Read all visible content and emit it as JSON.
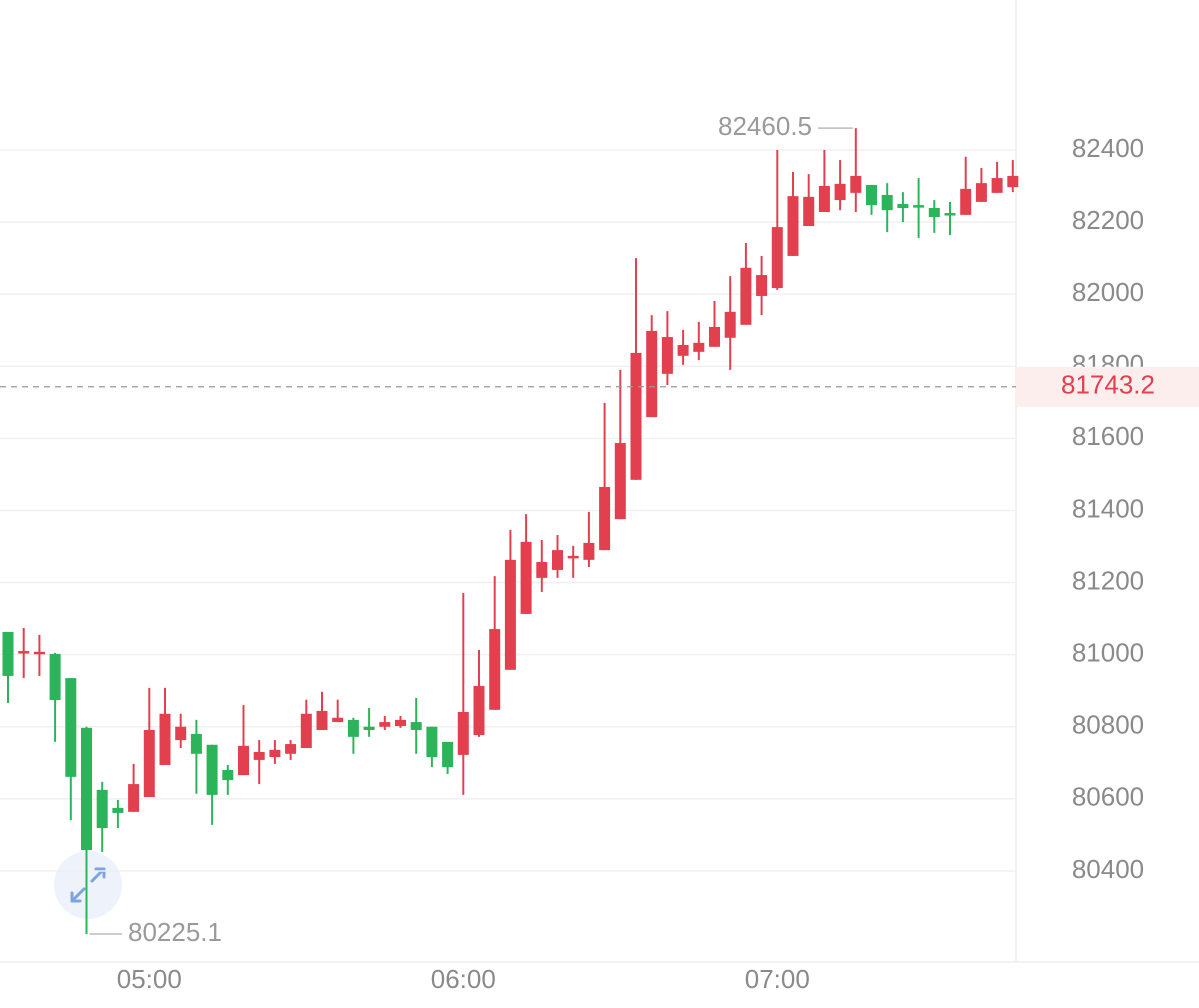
{
  "chart_data": {
    "type": "candlestick",
    "categories": [
      null,
      null,
      null,
      null,
      null,
      null,
      null,
      null,
      null,
      "05:00",
      null,
      null,
      null,
      null,
      null,
      null,
      null,
      null,
      null,
      null,
      null,
      null,
      null,
      null,
      null,
      null,
      null,
      null,
      null,
      "06:00",
      null,
      null,
      null,
      null,
      null,
      null,
      null,
      null,
      null,
      null,
      null,
      null,
      null,
      null,
      null,
      null,
      null,
      null,
      null,
      "07:00",
      null,
      null,
      null,
      null,
      null,
      null,
      null,
      null,
      null,
      null,
      null,
      null,
      null,
      null,
      null
    ],
    "open": [
      81063,
      81005,
      81005,
      81002,
      80935,
      80797,
      80625,
      80575,
      80564,
      80605,
      80694,
      80763,
      80780,
      80750,
      80680,
      80666,
      80708,
      80716,
      80725,
      80741,
      80791,
      80813,
      80819,
      80800,
      80800,
      80802,
      80813,
      80800,
      80758,
      80722,
      80777,
      80847,
      80958,
      81113,
      81213,
      81235,
      81268,
      81263,
      81290,
      81376,
      81485,
      81659,
      81779,
      81829,
      81840,
      81854,
      81879,
      81915,
      81995,
      82017,
      82106,
      82189,
      82228,
      82261,
      82281,
      82303,
      82275,
      82250,
      82247,
      82239,
      82225,
      82220,
      82256,
      82281,
      82297
    ],
    "high": [
      81063,
      81074,
      81055,
      81005,
      80935,
      80800,
      80647,
      80597,
      80697,
      80908,
      80908,
      80836,
      80819,
      80750,
      80694,
      80860,
      80763,
      80763,
      80763,
      80875,
      80897,
      80875,
      80825,
      80852,
      80830,
      80830,
      80880,
      80800,
      80758,
      81171,
      81013,
      81218,
      81346,
      81390,
      81318,
      81332,
      81302,
      81396,
      81698,
      81790,
      82100,
      81942,
      81953,
      81901,
      81923,
      81981,
      82050,
      82142,
      82106,
      82400,
      82339,
      82333,
      82400,
      82372,
      82460.5,
      82303,
      82308,
      82283,
      82322,
      82261,
      82256,
      82381,
      82350,
      82367,
      82372
    ],
    "low": [
      80866,
      80935,
      80941,
      80758,
      80541,
      80225.1,
      80453,
      80519,
      80564,
      80605,
      80694,
      80741,
      80614,
      80528,
      80611,
      80666,
      80641,
      80697,
      80708,
      80741,
      80791,
      80813,
      80725,
      80772,
      80791,
      80797,
      80725,
      80688,
      80669,
      80611,
      80772,
      80847,
      80958,
      81113,
      81174,
      81213,
      81213,
      81243,
      81290,
      81376,
      81485,
      81659,
      81748,
      81804,
      81817,
      81854,
      81790,
      81915,
      81942,
      82012,
      82106,
      82189,
      82228,
      82233,
      82228,
      82220,
      82172,
      82200,
      82156,
      82170,
      82164,
      82220,
      82256,
      82281,
      82283
    ],
    "close": [
      80941,
      81010,
      81008,
      80874,
      80661,
      80458,
      80519,
      80561,
      80641,
      80791,
      80836,
      80800,
      80725,
      80611,
      80652,
      80747,
      80730,
      80736,
      80752,
      80836,
      80844,
      80825,
      80772,
      80791,
      80813,
      80819,
      80791,
      80716,
      80688,
      80841,
      80913,
      81071,
      81263,
      81313,
      81257,
      81290,
      81274,
      81310,
      81465,
      81587,
      81837,
      81898,
      81881,
      81859,
      81865,
      81909,
      81951,
      82073,
      82053,
      82186,
      82272,
      82270,
      82300,
      82306,
      82328,
      82247,
      82233,
      82239,
      82242,
      82214,
      82220,
      82292,
      82308,
      82322,
      82328
    ],
    "up_color": "#e2404f",
    "down_color": "#2cb45a",
    "ylim": [
      80153,
      82816
    ],
    "yticks": [
      80400,
      80600,
      80800,
      81000,
      81200,
      81400,
      81600,
      81800,
      82000,
      82200,
      82400
    ],
    "grid": true,
    "max_label": 82460.5,
    "min_label": 80225.1,
    "last_price": 81743.2
  }
}
